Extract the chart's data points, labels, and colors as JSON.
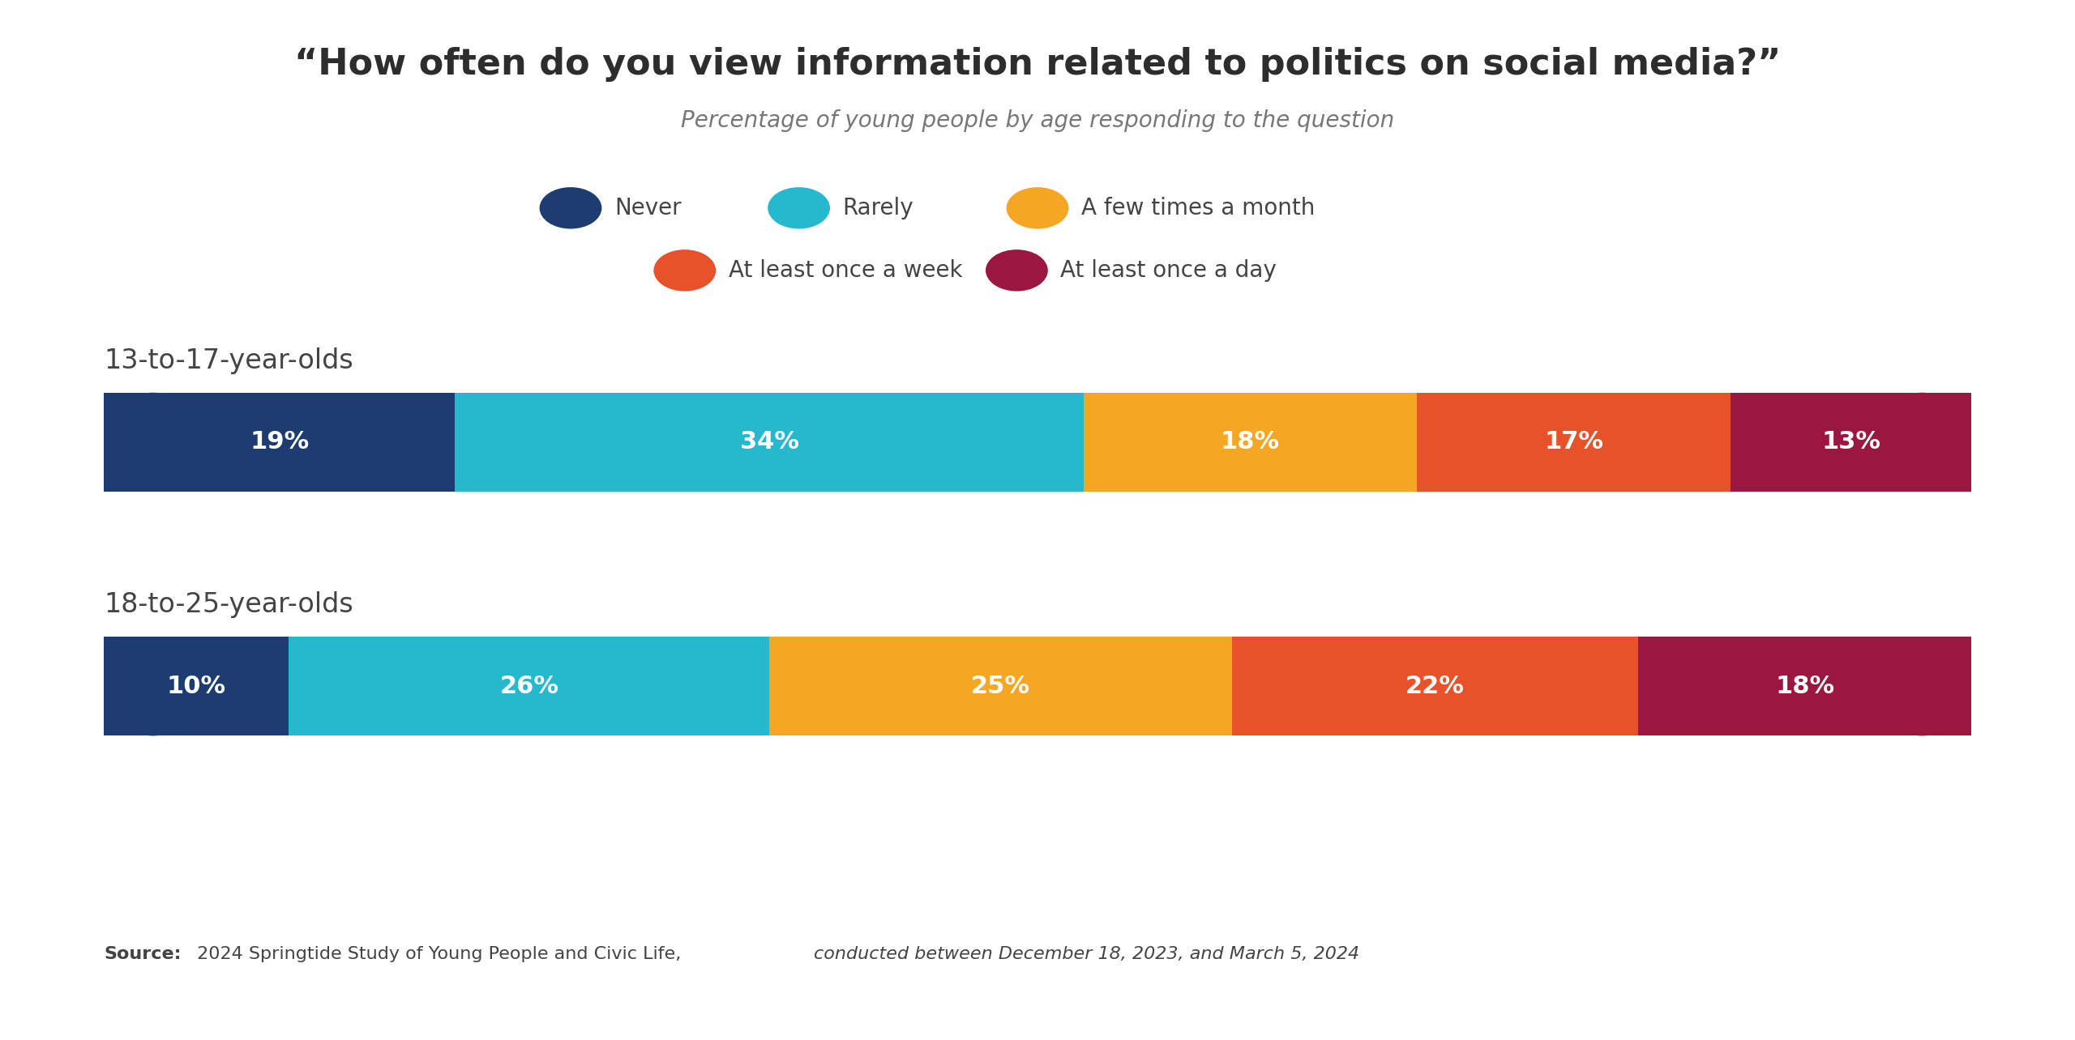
{
  "title": "“How often do you view information related to politics on social media?”",
  "subtitle": "Percentage of young people by age responding to the question",
  "source_bold": "Source:",
  "source_normal": " 2024 Springtide Study of Young People and Civic Life, ",
  "source_italic": "conducted between December 18, 2023, and March 5, 2024",
  "legend_items": [
    {
      "label": "Never",
      "color": "#1d3d72"
    },
    {
      "label": "Rarely",
      "color": "#26b8cc"
    },
    {
      "label": "A few times a month",
      "color": "#f5a623"
    },
    {
      "label": "At least once a week",
      "color": "#e8522a"
    },
    {
      "label": "At least once a day",
      "color": "#9b1740"
    }
  ],
  "groups": [
    {
      "label": "13-to-17-year-olds",
      "values": [
        19,
        34,
        18,
        17,
        13
      ]
    },
    {
      "label": "18-to-25-year-olds",
      "values": [
        10,
        26,
        25,
        22,
        18
      ]
    }
  ],
  "colors": [
    "#1d3d72",
    "#26b8cc",
    "#f5a623",
    "#e8522a",
    "#9b1740"
  ],
  "background_color": "#ffffff",
  "title_fontsize": 32,
  "subtitle_fontsize": 20,
  "group_label_fontsize": 24,
  "bar_label_fontsize": 22,
  "legend_fontsize": 20,
  "source_fontsize": 16
}
